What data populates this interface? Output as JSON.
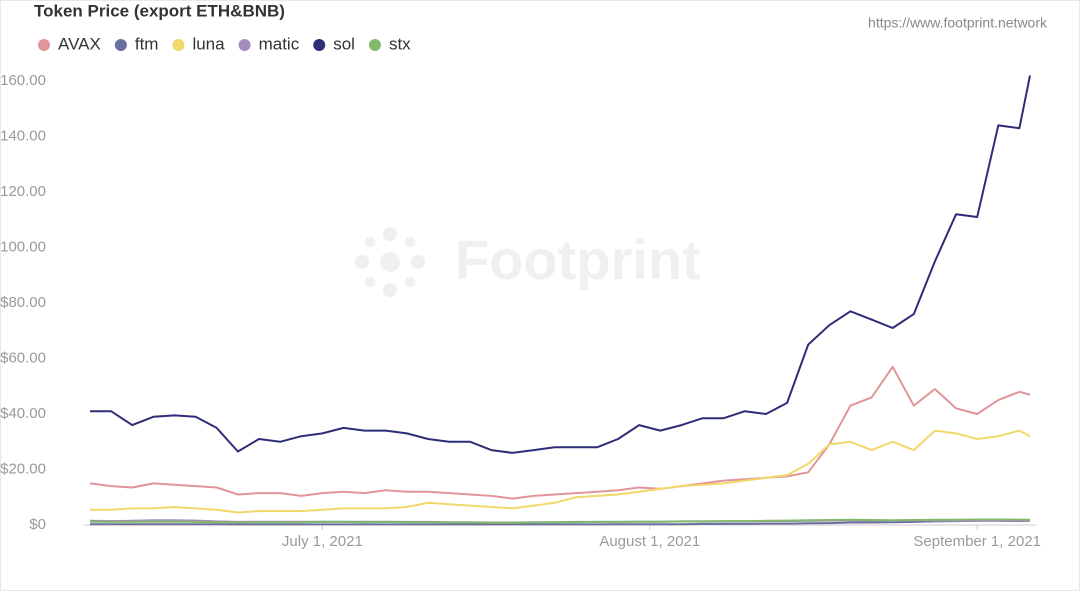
{
  "chart_data": {
    "type": "line",
    "title": "Token Price (export ETH&BNB)",
    "source": "https://www.footprint.network",
    "watermark": "Footprint",
    "x": [
      "2021-06-09",
      "2021-06-11",
      "2021-06-13",
      "2021-06-15",
      "2021-06-17",
      "2021-06-19",
      "2021-06-21",
      "2021-06-23",
      "2021-06-25",
      "2021-06-27",
      "2021-06-29",
      "2021-07-01",
      "2021-07-03",
      "2021-07-05",
      "2021-07-07",
      "2021-07-09",
      "2021-07-11",
      "2021-07-13",
      "2021-07-15",
      "2021-07-17",
      "2021-07-19",
      "2021-07-21",
      "2021-07-23",
      "2021-07-25",
      "2021-07-27",
      "2021-07-29",
      "2021-07-31",
      "2021-08-02",
      "2021-08-04",
      "2021-08-06",
      "2021-08-08",
      "2021-08-10",
      "2021-08-12",
      "2021-08-14",
      "2021-08-16",
      "2021-08-18",
      "2021-08-20",
      "2021-08-22",
      "2021-08-24",
      "2021-08-26",
      "2021-08-28",
      "2021-08-30",
      "2021-09-01",
      "2021-09-03",
      "2021-09-05",
      "2021-09-06"
    ],
    "xlim": [
      "2021-06-09",
      "2021-09-06"
    ],
    "xticks": [
      {
        "value": "2021-07-01",
        "label": "July 1, 2021"
      },
      {
        "value": "2021-08-01",
        "label": "August 1, 2021"
      },
      {
        "value": "2021-09-01",
        "label": "September 1, 2021"
      }
    ],
    "ylim": [
      0,
      160
    ],
    "yticks": [
      {
        "value": 0,
        "label": "$0"
      },
      {
        "value": 20,
        "label": "$20.00"
      },
      {
        "value": 40,
        "label": "$40.00"
      },
      {
        "value": 60,
        "label": "$60.00"
      },
      {
        "value": 80,
        "label": "$80.00"
      },
      {
        "value": 100,
        "label": "$100.00"
      },
      {
        "value": 120,
        "label": "$120.00"
      },
      {
        "value": 140,
        "label": "$140.00"
      },
      {
        "value": 160,
        "label": "$160.00"
      }
    ],
    "grid": false,
    "legend": "top-left",
    "series": [
      {
        "name": "AVAX",
        "color": "#e0959a",
        "values": [
          15,
          14,
          13.5,
          15,
          14.5,
          14,
          13.5,
          11,
          11.5,
          11.5,
          10.5,
          11.5,
          12,
          11.5,
          12.5,
          12,
          12,
          11.5,
          11,
          10.5,
          9.5,
          10.5,
          11,
          11.5,
          12,
          12.5,
          13.5,
          13,
          14,
          15,
          16,
          16.5,
          17,
          17.5,
          19,
          29,
          43,
          46,
          57,
          43,
          49,
          42,
          40,
          45,
          48,
          47
        ]
      },
      {
        "name": "ftm",
        "color": "#6b6f9e",
        "values": [
          0.3,
          0.3,
          0.3,
          0.3,
          0.3,
          0.3,
          0.3,
          0.2,
          0.2,
          0.2,
          0.2,
          0.2,
          0.2,
          0.2,
          0.2,
          0.2,
          0.2,
          0.2,
          0.2,
          0.2,
          0.2,
          0.2,
          0.2,
          0.2,
          0.2,
          0.3,
          0.3,
          0.3,
          0.3,
          0.4,
          0.4,
          0.4,
          0.5,
          0.5,
          0.6,
          0.7,
          0.9,
          0.9,
          1.0,
          1.1,
          1.3,
          1.4,
          1.5,
          1.5,
          1.4,
          1.5
        ]
      },
      {
        "name": "luna",
        "color": "#f2d86a",
        "values": [
          5.5,
          5.5,
          6,
          6,
          6.5,
          6,
          5.5,
          4.5,
          5,
          5,
          5,
          5.5,
          6,
          6,
          6,
          6.5,
          8,
          7.5,
          7,
          6.5,
          6,
          7,
          8,
          10,
          10.5,
          11,
          12,
          13,
          14,
          14.5,
          15,
          16,
          17,
          18,
          22,
          29,
          30,
          27,
          30,
          27,
          34,
          33,
          31,
          32,
          34,
          32
        ]
      },
      {
        "name": "matic",
        "color": "#a48bc0",
        "values": [
          1.5,
          1.4,
          1.5,
          1.7,
          1.7,
          1.6,
          1.3,
          1.1,
          1.2,
          1.2,
          1.2,
          1.2,
          1.2,
          1.2,
          1.2,
          1.1,
          1.1,
          1.0,
          1.0,
          0.9,
          0.9,
          1.0,
          1.0,
          1.1,
          1.1,
          1.1,
          1.2,
          1.2,
          1.3,
          1.3,
          1.3,
          1.3,
          1.4,
          1.4,
          1.5,
          1.6,
          1.7,
          1.6,
          1.5,
          1.7,
          1.6,
          1.5,
          1.5,
          1.6,
          1.5,
          1.5
        ]
      },
      {
        "name": "sol",
        "color": "#2e2d77",
        "values": [
          41,
          41,
          36,
          39,
          39.5,
          39,
          35,
          26.5,
          31,
          30,
          32,
          33,
          35,
          34,
          34,
          33,
          31,
          30,
          30,
          27,
          26,
          27,
          28,
          28,
          28,
          31,
          36,
          34,
          36,
          38.5,
          38.5,
          41,
          40,
          44,
          65,
          72,
          77,
          74,
          71,
          76,
          95,
          112,
          111,
          144,
          143,
          162
        ]
      },
      {
        "name": "stx",
        "color": "#82b96a",
        "values": [
          1.2,
          1.1,
          1.1,
          1.2,
          1.2,
          1.1,
          1.0,
          0.9,
          1.0,
          1.0,
          1.0,
          1.1,
          1.1,
          1.0,
          1.1,
          1.0,
          1.0,
          0.9,
          0.9,
          0.8,
          0.8,
          0.9,
          1.0,
          1.0,
          1.1,
          1.1,
          1.2,
          1.2,
          1.3,
          1.3,
          1.4,
          1.4,
          1.5,
          1.6,
          1.7,
          1.8,
          1.9,
          1.8,
          1.7,
          1.8,
          1.9,
          1.9,
          2.0,
          2.0,
          1.9,
          1.9
        ]
      }
    ]
  }
}
